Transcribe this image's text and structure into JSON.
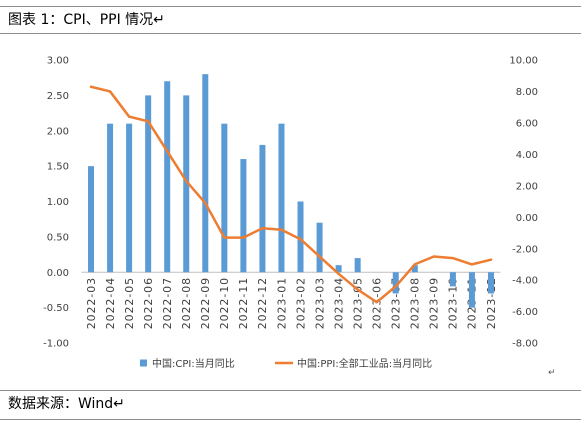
{
  "header": {
    "title": "图表 1：CPI、PPI 情况↵"
  },
  "chart_data": {
    "type": "bar",
    "categories": [
      "2022-03",
      "2022-04",
      "2022-05",
      "2022-06",
      "2022-07",
      "2022-08",
      "2022-09",
      "2022-10",
      "2022-11",
      "2022-12",
      "2023-01",
      "2023-02",
      "2023-03",
      "2023-04",
      "2023-05",
      "2023-06",
      "2023-07",
      "2023-08",
      "2023-09",
      "2023-10",
      "2023-11",
      "2023-12"
    ],
    "series": [
      {
        "name": "中国:CPI:当月同比",
        "type": "bar",
        "axis": "left",
        "color": "#5B9BD5",
        "values": [
          1.5,
          2.1,
          2.1,
          2.5,
          2.7,
          2.5,
          2.8,
          2.1,
          1.6,
          1.8,
          2.1,
          1.0,
          0.7,
          0.1,
          0.2,
          0.0,
          -0.3,
          0.1,
          0.0,
          -0.2,
          -0.5,
          -0.3
        ]
      },
      {
        "name": "中国:PPI:全部工业品:当月同比",
        "type": "line",
        "axis": "right",
        "color": "#ED7D31",
        "values": [
          8.3,
          8.0,
          6.4,
          6.1,
          4.2,
          2.3,
          0.9,
          -1.3,
          -1.3,
          -0.7,
          -0.8,
          -1.4,
          -2.5,
          -3.6,
          -4.6,
          -5.4,
          -4.4,
          -3.0,
          -2.5,
          -2.6,
          -3.0,
          -2.7
        ]
      }
    ],
    "y_left": {
      "range": [
        -1,
        3
      ],
      "ticks": [
        "3.00",
        "2.50",
        "2.00",
        "1.50",
        "1.00",
        "0.50",
        "0.00",
        "-0.50",
        "-1.00"
      ]
    },
    "y_right": {
      "range": [
        -8,
        10
      ],
      "ticks": [
        "10.00",
        "8.00",
        "6.00",
        "4.00",
        "2.00",
        "0.00",
        "-2.00",
        "-4.00",
        "-6.00",
        "-8.00"
      ]
    },
    "grid": false,
    "legend": "bottom"
  },
  "chart_area": {
    "paragraph_mark": "↵"
  },
  "footer": {
    "source": "数据来源：Wind↵"
  }
}
